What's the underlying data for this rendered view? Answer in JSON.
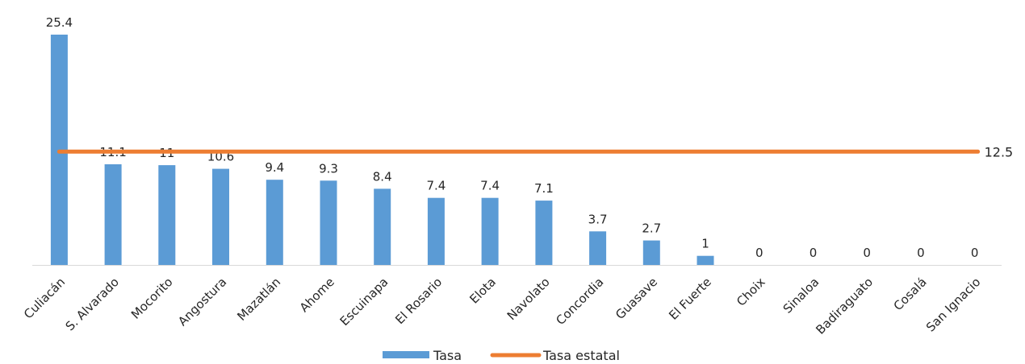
{
  "chart_data": {
    "type": "bar",
    "categories": [
      "Culiacán",
      "S. Alvarado",
      "Mocorito",
      "Angostura",
      "Mazatlán",
      "Ahome",
      "Escuinapa",
      "El Rosario",
      "Elota",
      "Navolato",
      "Concordia",
      "Guasave",
      "El Fuerte",
      "Choix",
      "Sinaloa",
      "Badiraguato",
      "Cosalá",
      "San Ignacio"
    ],
    "series": [
      {
        "name": "Tasa",
        "type": "bar",
        "color": "#5b9bd5",
        "values": [
          25.4,
          11.1,
          11,
          10.6,
          9.4,
          9.3,
          8.4,
          7.4,
          7.4,
          7.1,
          3.7,
          2.7,
          1,
          0,
          0,
          0,
          0,
          0
        ],
        "value_labels": [
          "25.4",
          "11.1",
          "11",
          "10.6",
          "9.4",
          "9.3",
          "8.4",
          "7.4",
          "7.4",
          "7.1",
          "3.7",
          "2.7",
          "1",
          "0",
          "0",
          "0",
          "0",
          "0"
        ]
      },
      {
        "name": "Tasa estatal",
        "type": "line",
        "color": "#ed7d31",
        "value": 12.5,
        "value_label": "12.5"
      }
    ],
    "ylim": [
      0,
      25.4
    ],
    "grid": false,
    "legend_position": "bottom",
    "xlabel": "",
    "ylabel": "",
    "title": ""
  }
}
